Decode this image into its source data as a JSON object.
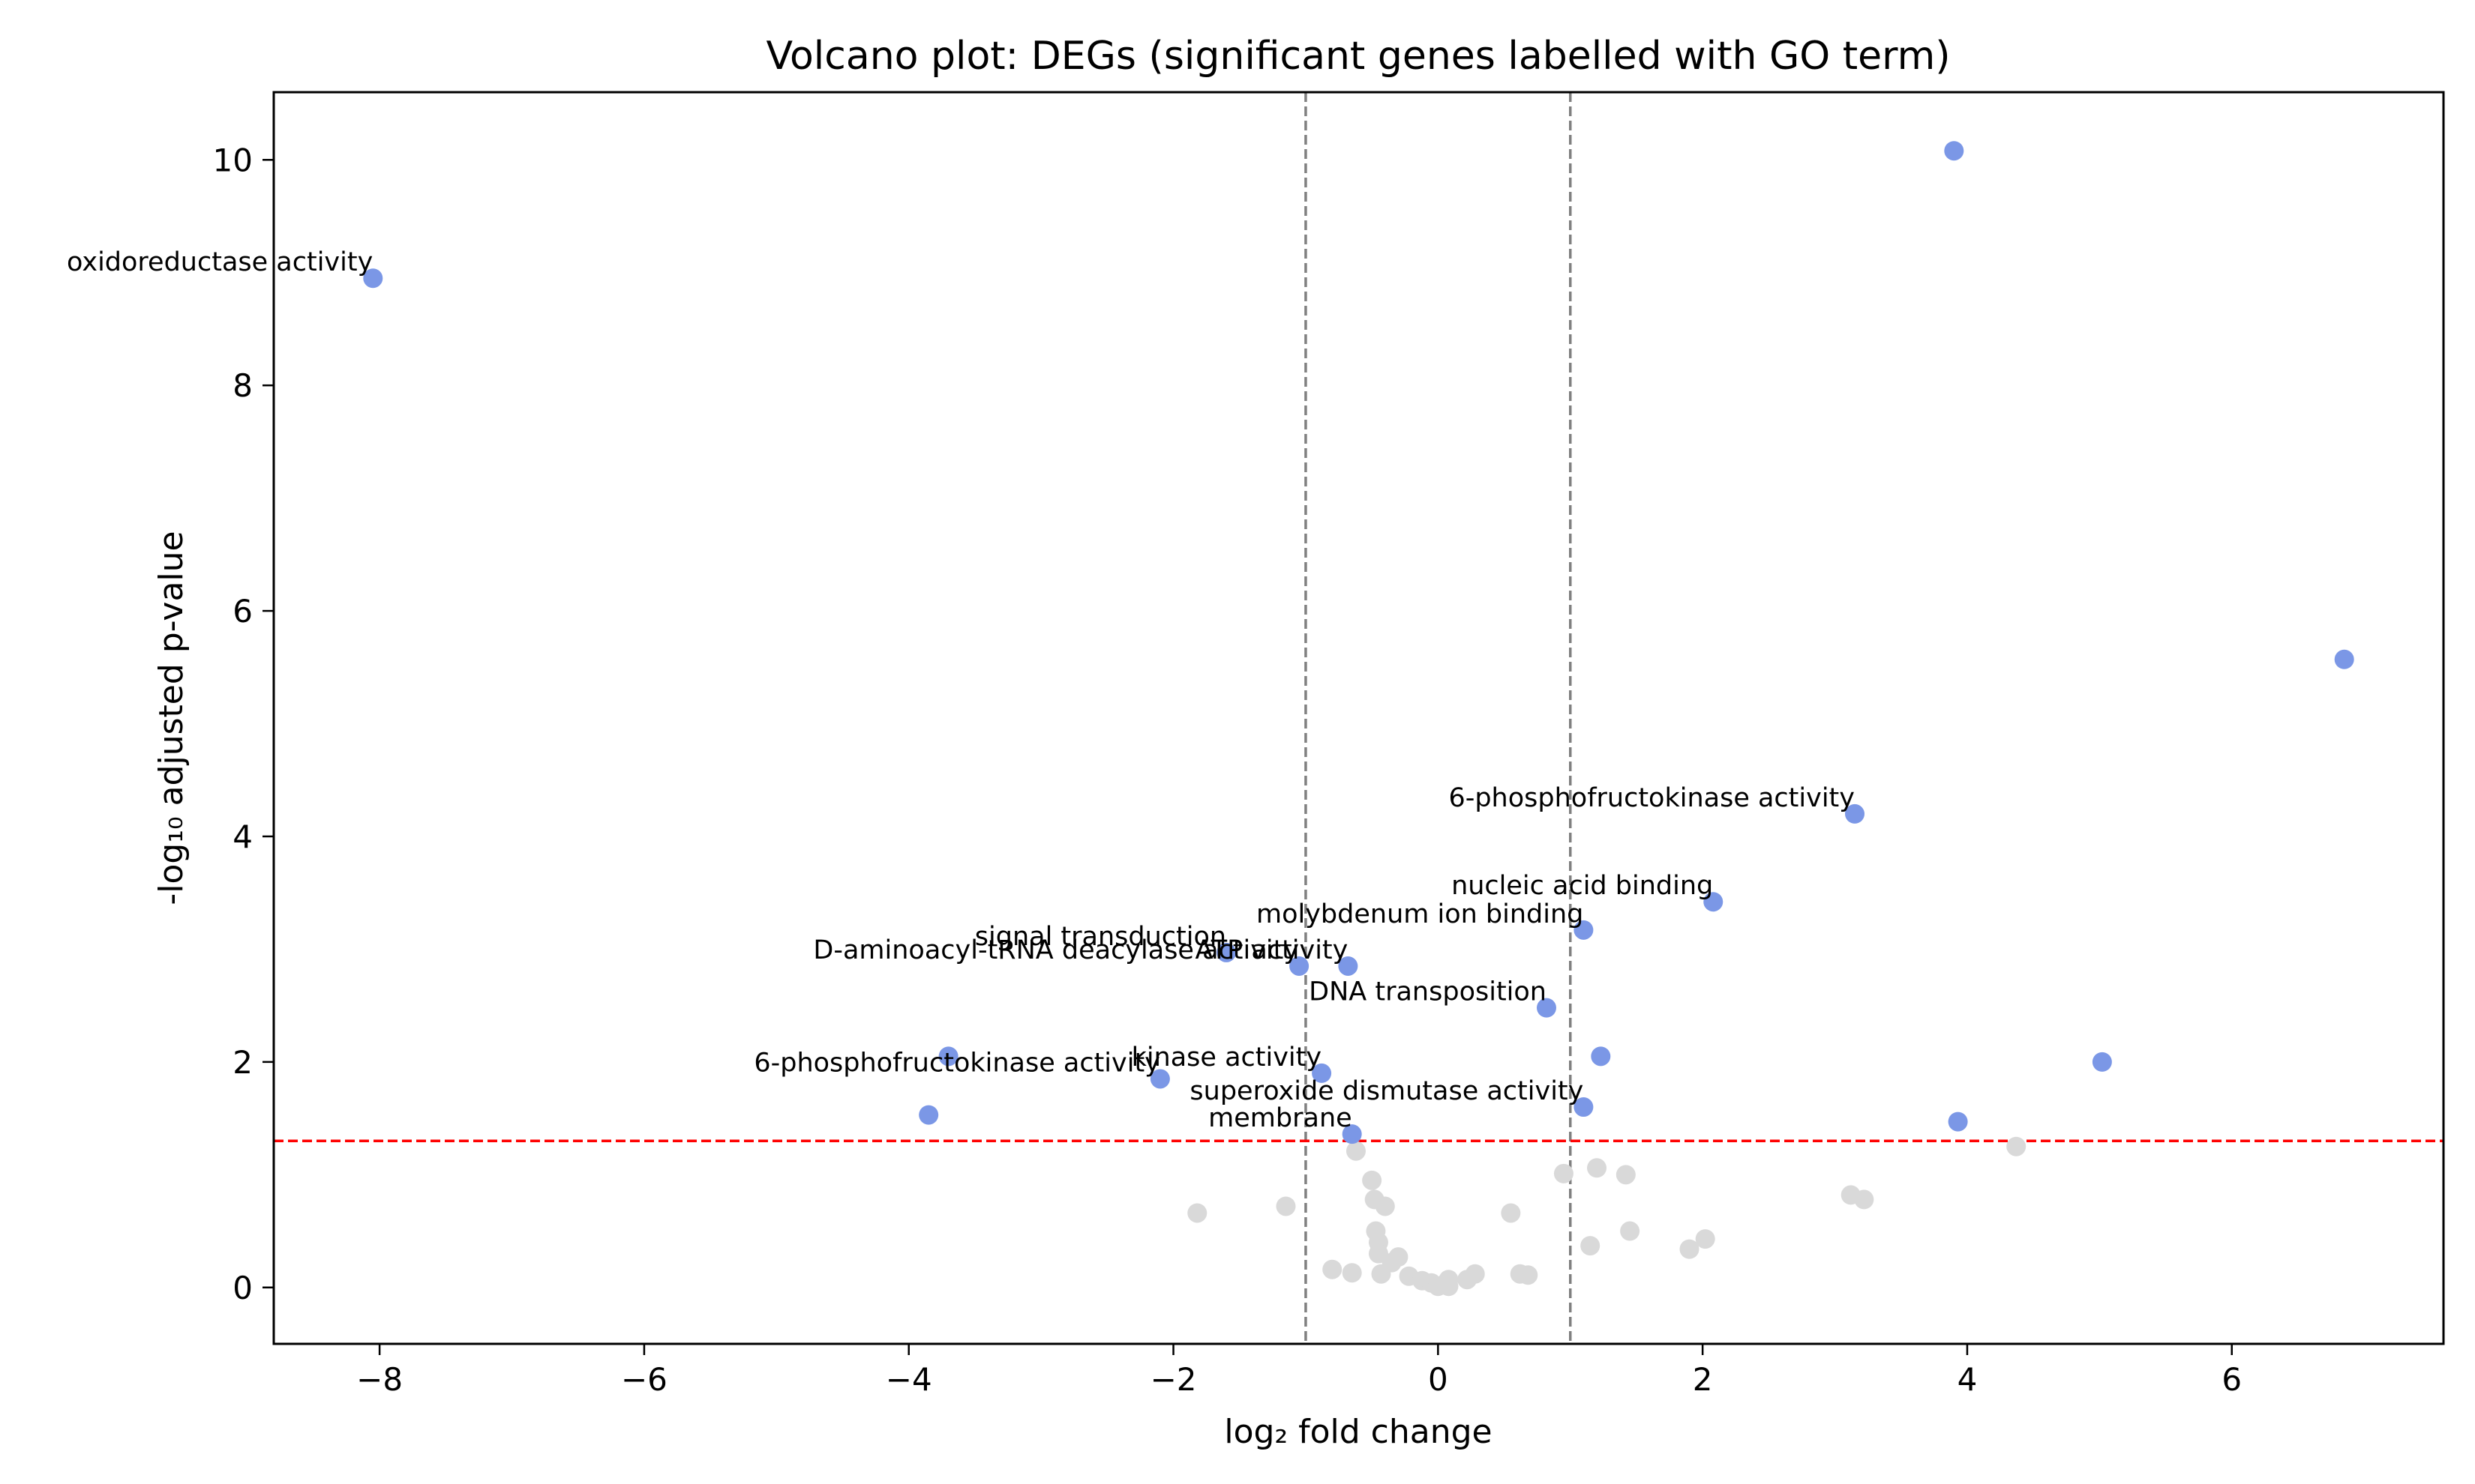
{
  "chart_data": {
    "type": "scatter",
    "title": "Volcano plot: DEGs (significant genes labelled with GO term)",
    "xlabel": "log₂ fold change",
    "ylabel": "-log₁₀ adjusted p-value",
    "xlim": [
      -8.8,
      7.6
    ],
    "ylim": [
      -0.5,
      10.6
    ],
    "xticks": [
      -8,
      -6,
      -4,
      -2,
      0,
      2,
      4,
      6
    ],
    "xtick_labels": [
      "−8",
      "−6",
      "−4",
      "−2",
      "0",
      "2",
      "4",
      "6"
    ],
    "yticks": [
      0,
      2,
      4,
      6,
      8,
      10
    ],
    "ytick_labels": [
      "0",
      "2",
      "4",
      "6",
      "8",
      "10"
    ],
    "grid": false,
    "thresholds": {
      "fold_change_lines": [
        -1,
        1
      ],
      "pvalue_line": 1.3,
      "fold_change_color": "#808080",
      "pvalue_color": "#ff0000"
    },
    "colors": {
      "significant": "#7b97e6",
      "non_significant": "#d9d9d9"
    },
    "significant_points": [
      {
        "x": 3.9,
        "y": 10.08,
        "label": ""
      },
      {
        "x": -8.05,
        "y": 8.95,
        "label": "oxidoreductase activity"
      },
      {
        "x": 6.85,
        "y": 5.57,
        "label": ""
      },
      {
        "x": 3.15,
        "y": 4.2,
        "label": "6-phosphofructokinase activity"
      },
      {
        "x": 2.08,
        "y": 3.42,
        "label": "nucleic acid binding"
      },
      {
        "x": 1.1,
        "y": 3.17,
        "label": "molybdenum ion binding"
      },
      {
        "x": -1.6,
        "y": 2.97,
        "label": "signal transduction"
      },
      {
        "x": -1.05,
        "y": 2.85,
        "label": "D-aminoacyl-tRNA deacylase activity"
      },
      {
        "x": -0.68,
        "y": 2.85,
        "label": "ATP activity"
      },
      {
        "x": 0.82,
        "y": 2.48,
        "label": "DNA transposition"
      },
      {
        "x": 1.23,
        "y": 2.05,
        "label": ""
      },
      {
        "x": -3.7,
        "y": 2.05,
        "label": ""
      },
      {
        "x": 5.02,
        "y": 2.0,
        "label": ""
      },
      {
        "x": -0.88,
        "y": 1.9,
        "label": "kinase activity"
      },
      {
        "x": -2.1,
        "y": 1.85,
        "label": "6-phosphofructokinase activity"
      },
      {
        "x": 1.1,
        "y": 1.6,
        "label": "superoxide dismutase activity"
      },
      {
        "x": -3.85,
        "y": 1.53,
        "label": ""
      },
      {
        "x": 3.93,
        "y": 1.47,
        "label": ""
      },
      {
        "x": -0.65,
        "y": 1.36,
        "label": "membrane"
      }
    ],
    "nonsignificant_points": [
      {
        "x": 4.37,
        "y": 1.25
      },
      {
        "x": -0.62,
        "y": 1.21
      },
      {
        "x": 1.2,
        "y": 1.06
      },
      {
        "x": 0.95,
        "y": 1.01
      },
      {
        "x": 1.42,
        "y": 1.0
      },
      {
        "x": -0.5,
        "y": 0.95
      },
      {
        "x": 3.12,
        "y": 0.82
      },
      {
        "x": 3.22,
        "y": 0.78
      },
      {
        "x": -0.48,
        "y": 0.78
      },
      {
        "x": -1.15,
        "y": 0.72
      },
      {
        "x": -0.4,
        "y": 0.72
      },
      {
        "x": -1.82,
        "y": 0.66
      },
      {
        "x": 0.55,
        "y": 0.66
      },
      {
        "x": 1.45,
        "y": 0.5
      },
      {
        "x": -0.47,
        "y": 0.5
      },
      {
        "x": 2.02,
        "y": 0.43
      },
      {
        "x": -0.45,
        "y": 0.4
      },
      {
        "x": 1.15,
        "y": 0.37
      },
      {
        "x": 1.9,
        "y": 0.34
      },
      {
        "x": -0.45,
        "y": 0.3
      },
      {
        "x": -0.3,
        "y": 0.27
      },
      {
        "x": -0.35,
        "y": 0.22
      },
      {
        "x": -0.8,
        "y": 0.16
      },
      {
        "x": -0.65,
        "y": 0.13
      },
      {
        "x": -0.43,
        "y": 0.12
      },
      {
        "x": -0.22,
        "y": 0.1
      },
      {
        "x": 0.28,
        "y": 0.12
      },
      {
        "x": 0.62,
        "y": 0.12
      },
      {
        "x": 0.68,
        "y": 0.11
      },
      {
        "x": 0.22,
        "y": 0.07
      },
      {
        "x": 0.08,
        "y": 0.07
      },
      {
        "x": -0.12,
        "y": 0.06
      },
      {
        "x": -0.05,
        "y": 0.04
      },
      {
        "x": 0.05,
        "y": 0.03
      },
      {
        "x": 0.0,
        "y": 0.01
      },
      {
        "x": 0.08,
        "y": 0.01
      }
    ]
  }
}
